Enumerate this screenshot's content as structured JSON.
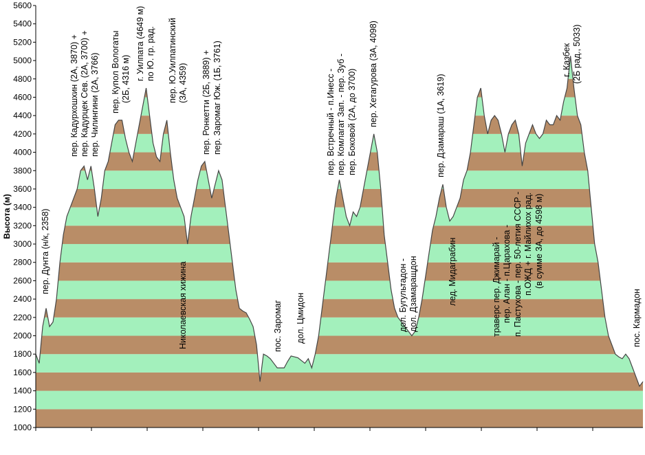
{
  "chart_data": {
    "type": "area",
    "y_label": "Высота (м)",
    "ylim": [
      1000,
      5600
    ],
    "yticks": [
      1000,
      1200,
      1400,
      1600,
      1800,
      2000,
      2200,
      2400,
      2600,
      2800,
      3000,
      3200,
      3400,
      3600,
      3800,
      4000,
      4200,
      4400,
      4600,
      4800,
      5000,
      5200,
      5400,
      5600
    ],
    "band_colors": [
      "#b98d67",
      "#a3f0bc"
    ],
    "line_color": "#444444",
    "values": [
      1800,
      1700,
      2100,
      2300,
      2100,
      2150,
      2400,
      2800,
      3100,
      3300,
      3400,
      3500,
      3600,
      3800,
      3850,
      3700,
      3850,
      3600,
      3300,
      3500,
      3800,
      3900,
      4100,
      4300,
      4350,
      4350,
      4150,
      4000,
      3900,
      4100,
      4300,
      4500,
      4700,
      4400,
      4100,
      3950,
      3900,
      4200,
      4350,
      4000,
      3700,
      3500,
      3400,
      3300,
      3000,
      3300,
      3500,
      3700,
      3850,
      3900,
      3700,
      3500,
      3650,
      3800,
      3700,
      3400,
      3100,
      2800,
      2500,
      2300,
      2270,
      2250,
      2180,
      2100,
      1900,
      1500,
      1800,
      1780,
      1750,
      1700,
      1650,
      1650,
      1650,
      1720,
      1780,
      1770,
      1760,
      1730,
      1700,
      1750,
      1650,
      1800,
      2000,
      2300,
      2600,
      2900,
      3200,
      3500,
      3700,
      3500,
      3300,
      3200,
      3350,
      3300,
      3400,
      3600,
      3800,
      4000,
      4200,
      4000,
      3600,
      3100,
      2800,
      2500,
      2300,
      2200,
      2150,
      2100,
      2050,
      2000,
      2050,
      2200,
      2400,
      2650,
      2900,
      3150,
      3300,
      3500,
      3650,
      3400,
      3250,
      3300,
      3400,
      3500,
      3700,
      3800,
      4000,
      4300,
      4600,
      4700,
      4400,
      4200,
      4350,
      4400,
      4350,
      4200,
      4000,
      4200,
      4300,
      4350,
      4200,
      3850,
      4100,
      4200,
      4300,
      4200,
      4150,
      4200,
      4350,
      4300,
      4300,
      4400,
      4350,
      4550,
      4700,
      5050,
      4700,
      4400,
      4300,
      4000,
      3800,
      3400,
      3000,
      2800,
      2500,
      2200,
      2000,
      1900,
      1800,
      1770,
      1750,
      1800,
      1750,
      1650,
      1550,
      1450,
      1500
    ],
    "annotations": [
      [
        "пер. Дунта (н/к, 2358)"
      ],
      [
        "пер. Кадурхошхин (2А, 3870) +",
        "пер. Кадурцек Сев. (2А, 3700) +",
        "пер. Чилингини (2А, 3766)"
      ],
      [
        "пер. Купол Вологаты",
        "(2Б, 4316 м)"
      ],
      [
        "г. Уилпата (4649 м)",
        "по Ю. гр. рад."
      ],
      [
        "пер. Ю.Уилпатинский",
        "(3А, 4359)"
      ],
      [
        "Николаевская хижина"
      ],
      [
        "пер. Ронкетти (2Б, 3889) +",
        "пер. Заромаг Юж. (1Б, 3761)"
      ],
      [
        "пос. Заромаг"
      ],
      [
        "дол. Цмидон"
      ],
      [
        "пер. Встречный - п.Инесс -",
        "пер. Комлагат Зап. - пер. Зуб -",
        "пер. Боковой (2А, до 3700)"
      ],
      [
        "пер. Хетагурова (3А, 4098)"
      ],
      [
        "дол. Бугультадон -",
        "дол. Дзамаращдон"
      ],
      [
        "пер. Дзамараш (1А, 3619)"
      ],
      [
        "лед. Мидаграбин"
      ],
      [
        "траверс пер. Джимарай -",
        "пер. Алан - п.Царахова -",
        "п. Пастухова - пер. 50-летия СССР -",
        "п.ОЖД + г. Майлихох рад.",
        "(в сумме 3А, до 4598 м)"
      ],
      [
        "г. Казбек",
        "(2Б рад., 5033)"
      ],
      [
        "пос. Кармадон"
      ]
    ]
  }
}
